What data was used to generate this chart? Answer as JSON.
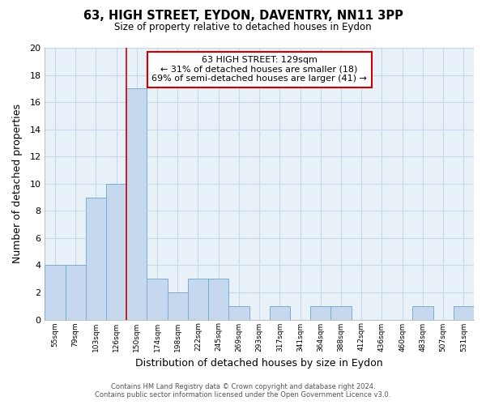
{
  "title": "63, HIGH STREET, EYDON, DAVENTRY, NN11 3PP",
  "subtitle": "Size of property relative to detached houses in Eydon",
  "xlabel": "Distribution of detached houses by size in Eydon",
  "ylabel": "Number of detached properties",
  "categories": [
    "55sqm",
    "79sqm",
    "103sqm",
    "126sqm",
    "150sqm",
    "174sqm",
    "198sqm",
    "222sqm",
    "245sqm",
    "269sqm",
    "293sqm",
    "317sqm",
    "341sqm",
    "364sqm",
    "388sqm",
    "412sqm",
    "436sqm",
    "460sqm",
    "483sqm",
    "507sqm",
    "531sqm"
  ],
  "values": [
    4,
    4,
    9,
    10,
    17,
    3,
    2,
    3,
    3,
    1,
    0,
    1,
    0,
    1,
    1,
    0,
    0,
    0,
    1,
    0,
    1
  ],
  "bar_color": "#c5d8ed",
  "bar_edge_color": "#7aaed6",
  "annotation_border_color": "#cc0000",
  "annotation_line1": "63 HIGH STREET: 129sqm",
  "annotation_line2": "← 31% of detached houses are smaller (18)",
  "annotation_line3": "69% of semi-detached houses are larger (41) →",
  "red_line_x": 3.5,
  "footer_line1": "Contains HM Land Registry data © Crown copyright and database right 2024.",
  "footer_line2": "Contains public sector information licensed under the Open Government Licence v3.0.",
  "ylim": [
    0,
    20
  ],
  "yticks": [
    0,
    2,
    4,
    6,
    8,
    10,
    12,
    14,
    16,
    18,
    20
  ],
  "background_color": "#ffffff",
  "axes_bg_color": "#e8f0f8",
  "grid_color": "#c8d8e8"
}
